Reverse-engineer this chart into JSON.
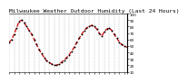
{
  "title": "Milwaukee Weather Outdoor Humidity (Last 24 Hours)",
  "background_color": "#ffffff",
  "plot_bg_color": "#ffffff",
  "line_color": "#cc0000",
  "marker_color": "#000000",
  "grid_color": "#888888",
  "y_axis_color": "#000000",
  "ylim": [
    10,
    100
  ],
  "yticks": [
    10,
    20,
    30,
    40,
    50,
    60,
    70,
    80,
    90,
    100
  ],
  "ytick_labels": [
    "10",
    "20",
    "30",
    "40",
    "50",
    "60",
    "70",
    "80",
    "90",
    "100"
  ],
  "x_values": [
    0,
    1,
    2,
    3,
    4,
    5,
    6,
    7,
    8,
    9,
    10,
    11,
    12,
    13,
    14,
    15,
    16,
    17,
    18,
    19,
    20,
    21,
    22,
    23,
    24,
    25,
    26,
    27,
    28,
    29,
    30,
    31,
    32,
    33,
    34,
    35,
    36,
    37,
    38,
    39,
    40,
    41,
    42,
    43,
    44,
    45,
    46,
    47
  ],
  "y_values": [
    55,
    60,
    68,
    78,
    88,
    90,
    86,
    80,
    74,
    68,
    60,
    52,
    44,
    38,
    32,
    27,
    24,
    22,
    20,
    20,
    22,
    25,
    28,
    32,
    36,
    42,
    48,
    55,
    62,
    68,
    74,
    78,
    80,
    82,
    80,
    76,
    70,
    65,
    72,
    76,
    78,
    74,
    68,
    62,
    56,
    52,
    50,
    48
  ],
  "xtick_positions": [
    0,
    2,
    4,
    6,
    8,
    10,
    12,
    14,
    16,
    18,
    20,
    22,
    24,
    26,
    28,
    30,
    32,
    34,
    36,
    38,
    40,
    42,
    44,
    46,
    47
  ],
  "title_fontsize": 4.5,
  "tick_fontsize": 3.0,
  "line_width": 0.9,
  "linestyle": "--",
  "marker_size": 1.8,
  "right_spine_color": "#000000"
}
